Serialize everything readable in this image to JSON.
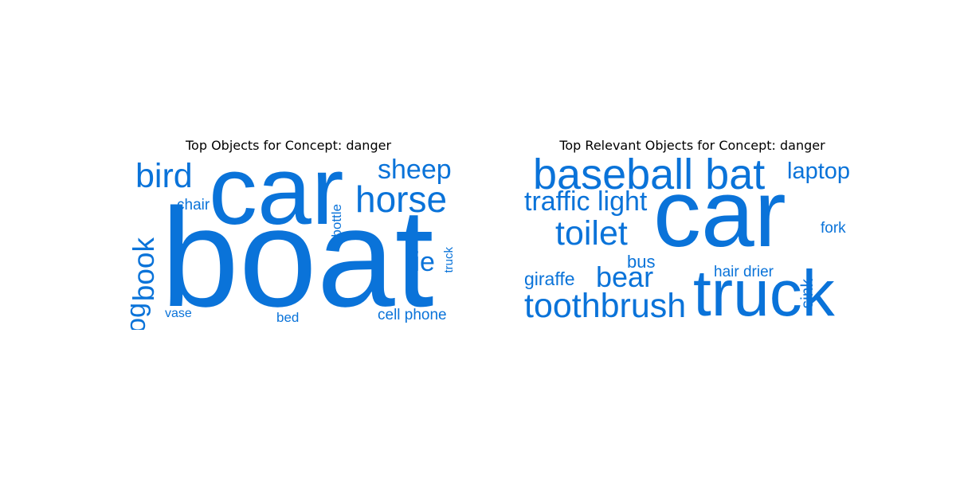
{
  "theme": {
    "word_color": "#0a73d9",
    "background": "#ffffff"
  },
  "chart_data": [
    {
      "type": "wordcloud",
      "title": "Top Objects for Concept: danger",
      "words": [
        {
          "text": "boat",
          "weight": 1.0
        },
        {
          "text": "car",
          "weight": 0.92
        },
        {
          "text": "horse",
          "weight": 0.42
        },
        {
          "text": "bird",
          "weight": 0.38
        },
        {
          "text": "sheep",
          "weight": 0.32
        },
        {
          "text": "book",
          "weight": 0.36
        },
        {
          "text": "tie",
          "weight": 0.3
        },
        {
          "text": "dog",
          "weight": 0.3
        },
        {
          "text": "bottle",
          "weight": 0.16
        },
        {
          "text": "chair",
          "weight": 0.18
        },
        {
          "text": "cell phone",
          "weight": 0.19
        },
        {
          "text": "bed",
          "weight": 0.17
        },
        {
          "text": "vase",
          "weight": 0.15
        },
        {
          "text": "truck",
          "weight": 0.13
        }
      ]
    },
    {
      "type": "wordcloud",
      "title": "Top Relevant Objects for Concept: danger",
      "words": [
        {
          "text": "car",
          "weight": 1.0
        },
        {
          "text": "truck",
          "weight": 0.75
        },
        {
          "text": "baseball bat",
          "weight": 0.5
        },
        {
          "text": "toothbrush",
          "weight": 0.4
        },
        {
          "text": "toilet",
          "weight": 0.4
        },
        {
          "text": "traffic light",
          "weight": 0.3
        },
        {
          "text": "bear",
          "weight": 0.32
        },
        {
          "text": "laptop",
          "weight": 0.27
        },
        {
          "text": "giraffe",
          "weight": 0.21
        },
        {
          "text": "bus",
          "weight": 0.2
        },
        {
          "text": "sink",
          "weight": 0.18
        },
        {
          "text": "hair drier",
          "weight": 0.17
        },
        {
          "text": "fork",
          "weight": 0.17
        }
      ]
    }
  ]
}
